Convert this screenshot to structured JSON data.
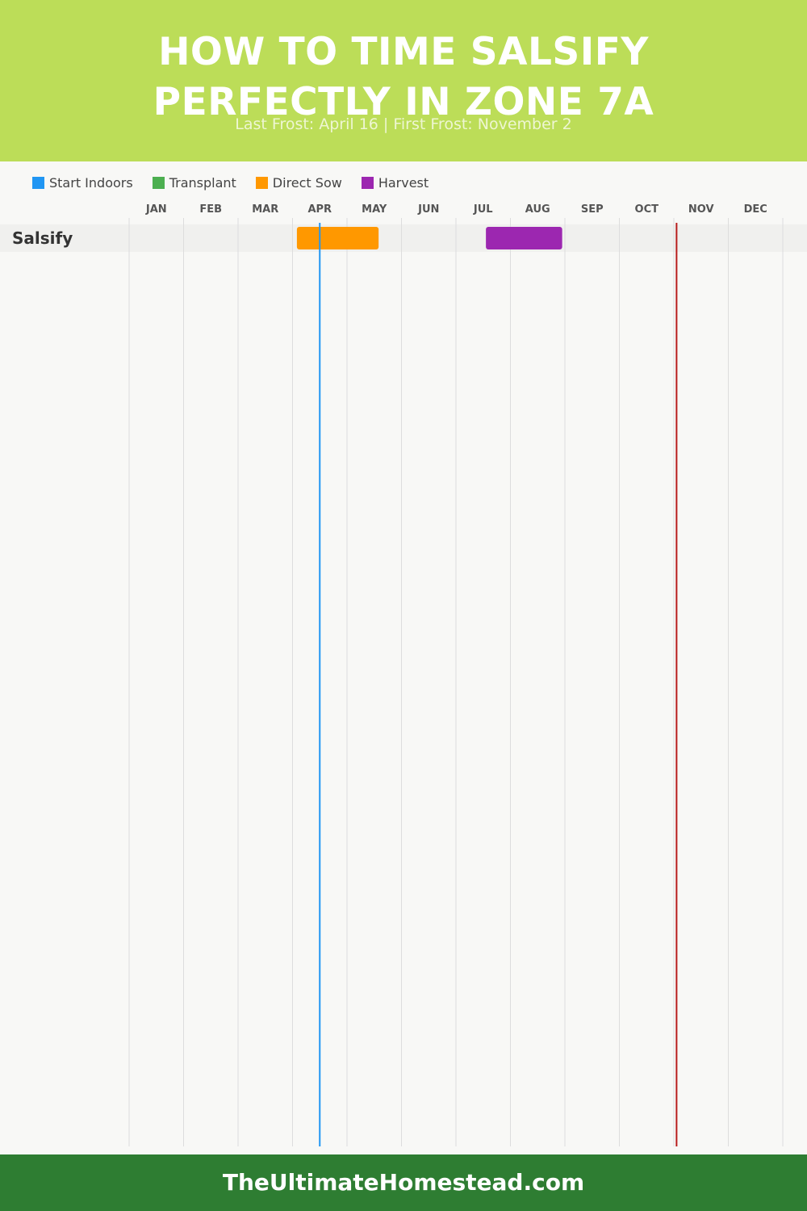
{
  "header": {
    "title_line1": "HOW TO TIME SALSIFY",
    "title_line2": "PERFECTLY IN ZONE 7A",
    "subtitle": "Last Frost: April 16 | First Frost: November 2"
  },
  "legend": [
    {
      "label": "Start Indoors",
      "color": "#2196f3"
    },
    {
      "label": "Transplant",
      "color": "#4caf50"
    },
    {
      "label": "Direct Sow",
      "color": "#ff9800"
    },
    {
      "label": "Harvest",
      "color": "#9c27b0"
    }
  ],
  "chart_data": {
    "type": "gantt",
    "categories": [
      "JAN",
      "FEB",
      "MAR",
      "APR",
      "MAY",
      "JUN",
      "JUL",
      "AUG",
      "SEP",
      "OCT",
      "NOV",
      "DEC"
    ],
    "rows": [
      {
        "label": "Salsify",
        "bars": [
          {
            "series": "Direct Sow",
            "start_month": 4.08,
            "end_month": 5.58,
            "color": "#ff9800"
          },
          {
            "series": "Harvest",
            "start_month": 7.55,
            "end_month": 8.95,
            "color": "#9c27b0"
          }
        ]
      }
    ],
    "markers": [
      {
        "position_month": 4.5,
        "color": "#2196f3"
      },
      {
        "position_month": 11.05,
        "color": "#b71c1c"
      }
    ],
    "xlim": [
      1,
      13
    ],
    "grid": true
  },
  "footer": {
    "text": "TheUltimateHomestead.com"
  }
}
